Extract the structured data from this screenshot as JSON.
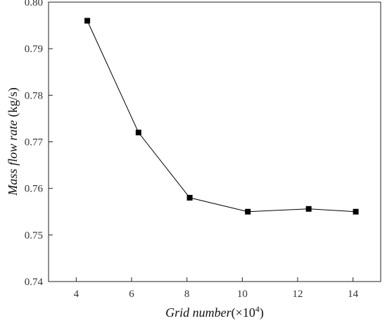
{
  "chart_data": {
    "type": "line",
    "xlabel_italic": "Grid number",
    "xlabel_rest": "(×10",
    "xlabel_sup": "4",
    "xlabel_close": ")",
    "ylabel_italic": "Mass flow rate",
    "ylabel_rest": " (kg/s)",
    "xlim": [
      3,
      15
    ],
    "ylim": [
      0.74,
      0.8
    ],
    "xticks": [
      4,
      6,
      8,
      10,
      12,
      14
    ],
    "yticks": [
      0.74,
      0.75,
      0.76,
      0.77,
      0.78,
      0.79,
      0.8
    ],
    "ytick_labels": [
      "0.74",
      "0.75",
      "0.76",
      "0.77",
      "0.78",
      "0.79",
      "0.80"
    ],
    "grid": false,
    "marker": "square",
    "color": "#000000",
    "series": [
      {
        "x": [
          4.4,
          6.25,
          8.1,
          10.2,
          12.4,
          14.1
        ],
        "y": [
          0.796,
          0.772,
          0.758,
          0.755,
          0.7556,
          0.755
        ]
      }
    ]
  }
}
